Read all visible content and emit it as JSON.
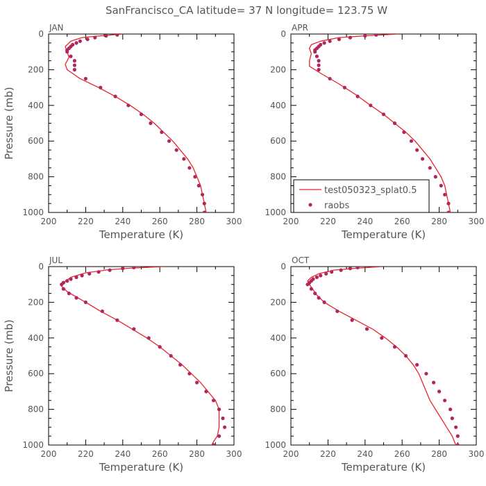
{
  "title": "SanFrancisco_CA  latitude= 37 N longitude= 123.75 W",
  "colors": {
    "model": "#e8242c",
    "obs": "#b0275f",
    "axis": "#000000",
    "text": "#555555"
  },
  "legend": {
    "model_label": "test050323_splat0.5",
    "obs_label": "raobs"
  },
  "chart_data": [
    {
      "type": "line",
      "panel": "JAN",
      "xlabel": "Temperature (K)",
      "ylabel": "Pressure (mb)",
      "xlim": [
        200,
        300
      ],
      "ylim": [
        1000,
        0
      ],
      "xticks": [
        200,
        220,
        240,
        260,
        280,
        300
      ],
      "yticks": [
        0,
        200,
        400,
        600,
        800,
        1000
      ],
      "series": [
        {
          "name": "test050323_splat0.5",
          "kind": "line",
          "points": [
            [
              240,
              0
            ],
            [
              228,
              10
            ],
            [
              218,
              20
            ],
            [
              212,
              40
            ],
            [
              209,
              70
            ],
            [
              210,
              100
            ],
            [
              211,
              130
            ],
            [
              209,
              170
            ],
            [
              210,
              200
            ],
            [
              217,
              250
            ],
            [
              227,
              300
            ],
            [
              236,
              350
            ],
            [
              244,
              400
            ],
            [
              251,
              450
            ],
            [
              257,
              500
            ],
            [
              262,
              550
            ],
            [
              267,
              600
            ],
            [
              271,
              650
            ],
            [
              275,
              700
            ],
            [
              278,
              750
            ],
            [
              280,
              800
            ],
            [
              282,
              850
            ],
            [
              283,
              900
            ],
            [
              284,
              950
            ],
            [
              285,
              1000
            ]
          ]
        },
        {
          "name": "raobs",
          "kind": "scatter",
          "points": [
            [
              237,
              5
            ],
            [
              231,
              10
            ],
            [
              225,
              20
            ],
            [
              221,
              30
            ],
            [
              217,
              40
            ],
            [
              215,
              50
            ],
            [
              213,
              60
            ],
            [
              212,
              70
            ],
            [
              211,
              80
            ],
            [
              210,
              90
            ],
            [
              210,
              100
            ],
            [
              212,
              125
            ],
            [
              214,
              150
            ],
            [
              214,
              175
            ],
            [
              214,
              200
            ],
            [
              220,
              250
            ],
            [
              228,
              300
            ],
            [
              236,
              350
            ],
            [
              243,
              400
            ],
            [
              250,
              450
            ],
            [
              255,
              500
            ],
            [
              261,
              550
            ],
            [
              265,
              600
            ],
            [
              269,
              650
            ],
            [
              273,
              700
            ],
            [
              276,
              750
            ],
            [
              279,
              800
            ],
            [
              281,
              850
            ],
            [
              283,
              900
            ],
            [
              284,
              950
            ],
            [
              284,
              1000
            ]
          ]
        }
      ]
    },
    {
      "type": "line",
      "panel": "APR",
      "xlabel": "Temperature (K)",
      "ylabel": "",
      "xlim": [
        200,
        300
      ],
      "ylim": [
        1000,
        0
      ],
      "xticks": [
        200,
        220,
        240,
        260,
        280,
        300
      ],
      "yticks": [
        0,
        200,
        400,
        600,
        800,
        1000
      ],
      "legend": true,
      "series": [
        {
          "name": "test050323_splat0.5",
          "kind": "line",
          "points": [
            [
              258,
              0
            ],
            [
              240,
              10
            ],
            [
              226,
              20
            ],
            [
              216,
              40
            ],
            [
              211,
              60
            ],
            [
              210,
              80
            ],
            [
              211,
              110
            ],
            [
              210,
              150
            ],
            [
              210,
              180
            ],
            [
              216,
              220
            ],
            [
              226,
              280
            ],
            [
              235,
              340
            ],
            [
              243,
              400
            ],
            [
              250,
              450
            ],
            [
              256,
              500
            ],
            [
              262,
              550
            ],
            [
              267,
              600
            ],
            [
              271,
              650
            ],
            [
              275,
              700
            ],
            [
              278,
              750
            ],
            [
              281,
              800
            ],
            [
              283,
              850
            ],
            [
              284,
              900
            ],
            [
              285,
              950
            ],
            [
              286,
              1000
            ]
          ]
        },
        {
          "name": "raobs",
          "kind": "scatter",
          "points": [
            [
              246,
              5
            ],
            [
              240,
              10
            ],
            [
              232,
              20
            ],
            [
              226,
              30
            ],
            [
              221,
              40
            ],
            [
              218,
              50
            ],
            [
              216,
              60
            ],
            [
              215,
              70
            ],
            [
              214,
              80
            ],
            [
              213,
              90
            ],
            [
              213,
              100
            ],
            [
              214,
              125
            ],
            [
              215,
              150
            ],
            [
              215,
              175
            ],
            [
              215,
              200
            ],
            [
              221,
              250
            ],
            [
              229,
              300
            ],
            [
              236,
              350
            ],
            [
              243,
              400
            ],
            [
              250,
              450
            ],
            [
              256,
              500
            ],
            [
              261,
              550
            ],
            [
              265,
              600
            ],
            [
              268,
              650
            ],
            [
              271,
              700
            ],
            [
              275,
              750
            ],
            [
              278,
              800
            ],
            [
              281,
              850
            ],
            [
              283,
              900
            ],
            [
              285,
              950
            ],
            [
              285,
              1000
            ]
          ]
        }
      ]
    },
    {
      "type": "line",
      "panel": "JUL",
      "xlabel": "Temperature (K)",
      "ylabel": "Pressure (mb)",
      "xlim": [
        200,
        300
      ],
      "ylim": [
        1000,
        0
      ],
      "xticks": [
        200,
        220,
        240,
        260,
        280,
        300
      ],
      "yticks": [
        0,
        200,
        400,
        600,
        800,
        1000
      ],
      "series": [
        {
          "name": "test050323_splat0.5",
          "kind": "line",
          "points": [
            [
              262,
              0
            ],
            [
              245,
              8
            ],
            [
              232,
              18
            ],
            [
              220,
              35
            ],
            [
              212,
              60
            ],
            [
              208,
              90
            ],
            [
              207,
              110
            ],
            [
              210,
              140
            ],
            [
              215,
              170
            ],
            [
              220,
              200
            ],
            [
              228,
              250
            ],
            [
              237,
              300
            ],
            [
              245,
              350
            ],
            [
              253,
              400
            ],
            [
              260,
              450
            ],
            [
              266,
              500
            ],
            [
              272,
              550
            ],
            [
              277,
              600
            ],
            [
              282,
              650
            ],
            [
              286,
              700
            ],
            [
              290,
              750
            ],
            [
              292,
              800
            ],
            [
              292,
              850
            ],
            [
              292,
              900
            ],
            [
              291,
              950
            ],
            [
              289,
              980
            ],
            [
              288,
              1000
            ]
          ]
        },
        {
          "name": "raobs",
          "kind": "scatter",
          "points": [
            [
              246,
              5
            ],
            [
              240,
              10
            ],
            [
              233,
              20
            ],
            [
              227,
              30
            ],
            [
              222,
              40
            ],
            [
              218,
              50
            ],
            [
              215,
              60
            ],
            [
              212,
              70
            ],
            [
              210,
              80
            ],
            [
              208,
              90
            ],
            [
              207,
              100
            ],
            [
              208,
              125
            ],
            [
              211,
              150
            ],
            [
              215,
              175
            ],
            [
              220,
              200
            ],
            [
              229,
              250
            ],
            [
              237,
              300
            ],
            [
              246,
              350
            ],
            [
              254,
              400
            ],
            [
              260,
              450
            ],
            [
              266,
              500
            ],
            [
              271,
              550
            ],
            [
              276,
              600
            ],
            [
              280,
              650
            ],
            [
              285,
              700
            ],
            [
              289,
              750
            ],
            [
              292,
              800
            ],
            [
              294,
              850
            ],
            [
              295,
              900
            ],
            [
              292,
              950
            ],
            [
              289,
              1000
            ]
          ]
        }
      ]
    },
    {
      "type": "line",
      "panel": "OCT",
      "xlabel": "Temperature (K)",
      "ylabel": "",
      "xlim": [
        200,
        300
      ],
      "ylim": [
        1000,
        0
      ],
      "xticks": [
        200,
        220,
        240,
        260,
        280,
        300
      ],
      "yticks": [
        0,
        200,
        400,
        600,
        800,
        1000
      ],
      "series": [
        {
          "name": "test050323_splat0.5",
          "kind": "line",
          "points": [
            [
              249,
              0
            ],
            [
              234,
              10
            ],
            [
              223,
              20
            ],
            [
              215,
              40
            ],
            [
              211,
              60
            ],
            [
              209,
              80
            ],
            [
              210,
              100
            ],
            [
              212,
              130
            ],
            [
              214,
              160
            ],
            [
              218,
              200
            ],
            [
              226,
              250
            ],
            [
              235,
              300
            ],
            [
              244,
              350
            ],
            [
              251,
              400
            ],
            [
              257,
              450
            ],
            [
              262,
              500
            ],
            [
              266,
              550
            ],
            [
              269,
              600
            ],
            [
              271,
              650
            ],
            [
              273,
              700
            ],
            [
              275,
              750
            ],
            [
              278,
              800
            ],
            [
              281,
              850
            ],
            [
              284,
              900
            ],
            [
              287,
              950
            ],
            [
              289,
              1000
            ]
          ]
        },
        {
          "name": "raobs",
          "kind": "scatter",
          "points": [
            [
              236,
              5
            ],
            [
              232,
              10
            ],
            [
              227,
              20
            ],
            [
              222,
              30
            ],
            [
              219,
              40
            ],
            [
              216,
              50
            ],
            [
              214,
              60
            ],
            [
              212,
              70
            ],
            [
              211,
              80
            ],
            [
              210,
              90
            ],
            [
              209,
              100
            ],
            [
              211,
              125
            ],
            [
              213,
              150
            ],
            [
              215,
              175
            ],
            [
              218,
              200
            ],
            [
              225,
              250
            ],
            [
              233,
              300
            ],
            [
              241,
              350
            ],
            [
              249,
              400
            ],
            [
              256,
              450
            ],
            [
              262,
              500
            ],
            [
              268,
              550
            ],
            [
              273,
              600
            ],
            [
              277,
              650
            ],
            [
              280,
              700
            ],
            [
              283,
              750
            ],
            [
              286,
              800
            ],
            [
              287,
              850
            ],
            [
              289,
              900
            ],
            [
              290,
              950
            ],
            [
              290,
              1000
            ]
          ]
        }
      ]
    }
  ]
}
